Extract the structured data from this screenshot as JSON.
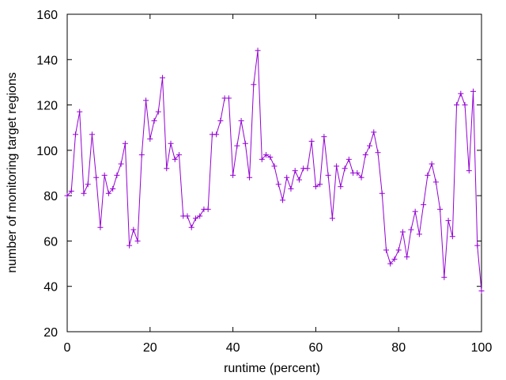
{
  "chart_data": {
    "type": "line",
    "xlabel": "runtime (percent)",
    "ylabel": "number of monitoring target regions",
    "xlim": [
      0,
      100
    ],
    "ylim": [
      20,
      160
    ],
    "xticks": [
      0,
      20,
      40,
      60,
      80,
      100
    ],
    "yticks": [
      20,
      40,
      60,
      80,
      100,
      120,
      140,
      160
    ],
    "grid": false,
    "legend": "none",
    "marker": "plus",
    "series": [
      {
        "color": "#9400d3",
        "x": [
          0,
          1,
          2,
          3,
          4,
          5,
          6,
          7,
          8,
          9,
          10,
          11,
          12,
          13,
          14,
          15,
          16,
          17,
          18,
          19,
          20,
          21,
          22,
          23,
          24,
          25,
          26,
          27,
          28,
          29,
          30,
          31,
          32,
          33,
          34,
          35,
          36,
          37,
          38,
          39,
          40,
          41,
          42,
          43,
          44,
          45,
          46,
          47,
          48,
          49,
          50,
          51,
          52,
          53,
          54,
          55,
          56,
          57,
          58,
          59,
          60,
          61,
          62,
          63,
          64,
          65,
          66,
          67,
          68,
          69,
          70,
          71,
          72,
          73,
          74,
          75,
          76,
          77,
          78,
          79,
          80,
          81,
          82,
          83,
          84,
          85,
          86,
          87,
          88,
          89,
          90,
          91,
          92,
          93,
          94,
          95,
          96,
          97,
          98,
          99,
          100
        ],
        "y": [
          80,
          82,
          107,
          117,
          81,
          85,
          107,
          88,
          66,
          89,
          81,
          83,
          89,
          94,
          103,
          58,
          65,
          60,
          98,
          122,
          105,
          113,
          117,
          132,
          92,
          103,
          96,
          98,
          71,
          71,
          66,
          70,
          71,
          74,
          74,
          107,
          107,
          113,
          123,
          123,
          89,
          102,
          113,
          103,
          88,
          129,
          144,
          96,
          98,
          97,
          93,
          85,
          78,
          88,
          83,
          91,
          87,
          92,
          92,
          104,
          84,
          85,
          106,
          89,
          70,
          93,
          84,
          92,
          96,
          90,
          90,
          88,
          98,
          102,
          108,
          99,
          81,
          56,
          50,
          52,
          56,
          64,
          53,
          65,
          73,
          63,
          76,
          89,
          94,
          86,
          74,
          44,
          69,
          62,
          120,
          125,
          120,
          91,
          126,
          58,
          38
        ]
      }
    ]
  }
}
